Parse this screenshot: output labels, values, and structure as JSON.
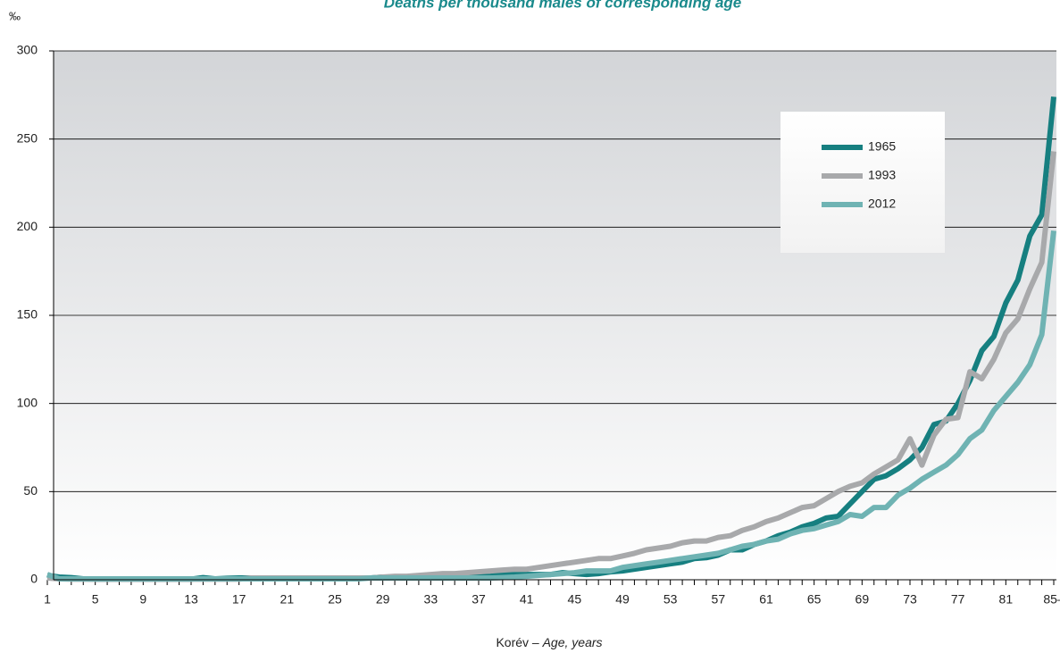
{
  "chart_data": {
    "type": "line",
    "title": "Deaths per thousand males of corresponding age",
    "y_unit": "‰",
    "x_label": {
      "hu": "Korév – ",
      "en": "Age, years"
    },
    "categories": [
      "1",
      null,
      null,
      null,
      "5",
      null,
      null,
      null,
      "9",
      null,
      null,
      null,
      "13",
      null,
      null,
      null,
      "17",
      null,
      null,
      null,
      "21",
      null,
      null,
      null,
      "25",
      null,
      null,
      null,
      "29",
      null,
      null,
      null,
      "33",
      null,
      null,
      null,
      "37",
      null,
      null,
      null,
      "41",
      null,
      null,
      null,
      "45",
      null,
      null,
      null,
      "49",
      null,
      null,
      null,
      "53",
      null,
      null,
      null,
      "57",
      null,
      null,
      null,
      "61",
      null,
      null,
      null,
      "65",
      null,
      null,
      null,
      "69",
      null,
      null,
      null,
      "73",
      null,
      null,
      null,
      "77",
      null,
      null,
      null,
      "81",
      null,
      null,
      null,
      "85–"
    ],
    "series": [
      {
        "name": "1965",
        "color": "#167f80",
        "values": [
          2.5,
          1.5,
          1.2,
          0.5,
          0.3,
          0.3,
          0.3,
          0.3,
          0.3,
          0.3,
          0.3,
          0.3,
          0.3,
          1.2,
          0.5,
          0.8,
          1,
          1,
          1,
          1,
          1,
          1,
          1,
          1,
          1,
          1,
          1,
          1,
          1.5,
          1.5,
          1.5,
          1.5,
          1.5,
          2,
          2,
          2,
          2,
          2,
          3,
          3,
          3,
          3,
          3,
          4,
          3.5,
          3,
          3.5,
          4.5,
          5,
          6,
          7,
          8,
          9,
          10,
          12,
          12.5,
          14,
          17,
          17,
          20,
          22,
          25,
          27,
          30,
          32,
          35,
          36,
          43,
          50,
          57,
          59,
          63,
          68,
          75,
          88,
          90,
          100,
          113,
          130,
          138,
          157,
          170,
          195,
          207,
          274
        ]
      },
      {
        "name": "1993",
        "color": "#a8a9ab",
        "values": [
          1,
          0.5,
          0.3,
          0.3,
          0.3,
          0.3,
          0.3,
          0.3,
          0.3,
          0.3,
          0.3,
          0.3,
          0.3,
          0.3,
          0.3,
          0.3,
          0.3,
          1,
          1,
          1,
          1,
          1,
          1,
          1,
          1,
          1,
          1,
          1,
          1.5,
          2,
          2,
          2.5,
          3,
          3.5,
          3.5,
          4,
          4.5,
          5,
          5.5,
          6,
          6,
          7,
          8,
          9,
          10,
          11,
          12,
          12,
          13.5,
          15,
          17,
          18,
          19,
          21,
          22,
          22,
          24,
          25,
          28,
          30,
          33,
          35,
          38,
          41,
          42,
          46,
          50,
          53,
          55,
          60,
          64,
          68,
          80,
          65,
          82,
          91,
          92,
          118,
          114,
          125,
          140,
          148,
          165,
          180,
          243
        ]
      },
      {
        "name": "2012",
        "color": "#6fb3b3",
        "values": [
          3,
          0.5,
          0.5,
          0.5,
          0.5,
          0.5,
          0.5,
          0.5,
          0.5,
          0.5,
          0.5,
          0.5,
          0.5,
          0.5,
          0.5,
          0.5,
          0.5,
          0.5,
          0.5,
          0.5,
          0.5,
          0.5,
          0.5,
          0.5,
          0.5,
          0.5,
          0.5,
          1,
          1,
          1,
          1,
          1,
          1,
          1,
          1,
          1,
          1,
          1,
          1.2,
          1.5,
          2,
          2.5,
          3,
          3.5,
          4,
          5,
          5,
          5,
          7,
          8,
          9,
          10,
          11,
          12,
          13,
          14,
          15,
          17,
          19,
          20,
          22,
          23,
          26,
          28,
          29,
          31,
          33,
          37,
          36,
          41,
          41,
          48,
          52,
          57,
          61,
          65,
          71,
          80,
          85,
          96,
          104,
          112,
          122,
          139,
          198
        ]
      }
    ],
    "ylim": [
      0,
      300
    ],
    "yticks": [
      0,
      50,
      100,
      150,
      200,
      250,
      300
    ],
    "grid": true,
    "legend": "upper right"
  }
}
